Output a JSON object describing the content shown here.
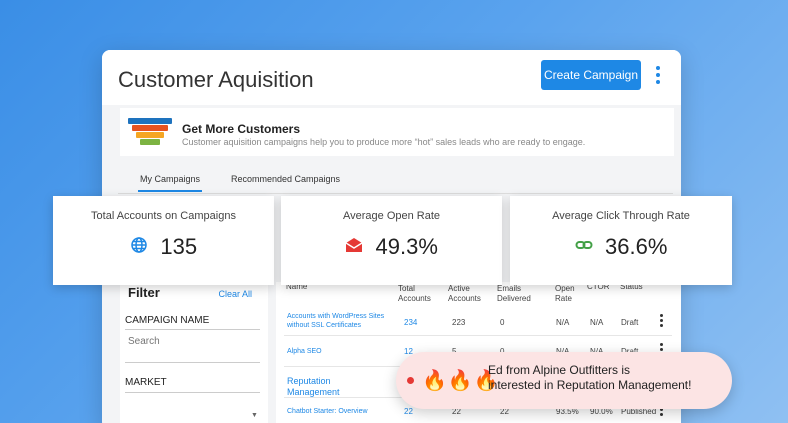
{
  "header": {
    "title": "Customer Aquisition",
    "create_button": "Create Campaign",
    "more_icon": "more-vertical-icon"
  },
  "banner": {
    "icon": "funnel-icon",
    "title": "Get More Customers",
    "description": "Customer aquisition campaigns help you to produce more “hot” sales leads who are ready to engage.",
    "funnel_colors": [
      "#1e73be",
      "#e8531f",
      "#f5a623",
      "#7cb342"
    ]
  },
  "tabs": [
    {
      "label": "My Campaigns",
      "active": true
    },
    {
      "label": "Recommended Campaigns",
      "active": false
    }
  ],
  "stats": [
    {
      "label": "Total Accounts on Campaigns",
      "value": "135",
      "icon": "globe-icon",
      "color": "#1e88e5"
    },
    {
      "label": "Average Open Rate",
      "value": "49.3%",
      "icon": "email-open-icon",
      "color": "#e53935"
    },
    {
      "label": "Average Click Through Rate",
      "value": "36.6%",
      "icon": "link-icon",
      "color": "#43a047"
    }
  ],
  "filter": {
    "title": "Filter",
    "clear_label": "Clear All",
    "campaign_name_label": "CAMPAIGN NAME",
    "search_placeholder": "Search",
    "market_label": "MARKET"
  },
  "table": {
    "columns": [
      "Name",
      "Total Accounts",
      "Active Accounts",
      "Emails Delivered",
      "Open Rate",
      "CTOR",
      "Status"
    ],
    "rows": [
      {
        "name": "Accounts with WordPress Sites without SSL Certificates",
        "total": "234",
        "active": "223",
        "delivered": "0",
        "open_rate": "N/A",
        "ctor": "N/A",
        "status": "Draft"
      },
      {
        "name": "Alpha SEO",
        "total": "12",
        "active": "5",
        "delivered": "0",
        "open_rate": "N/A",
        "ctor": "N/A",
        "status": "Draft"
      },
      {
        "name": "Reputation Management",
        "total": "",
        "active": "",
        "delivered": "",
        "open_rate": "",
        "ctor": "",
        "status": ""
      },
      {
        "name": "Chatbot Starter: Overview",
        "total": "22",
        "active": "22",
        "delivered": "22",
        "open_rate": "93.5%",
        "ctor": "90.0%",
        "status": "Published"
      }
    ]
  },
  "toast": {
    "icons": "🔥🔥🔥",
    "line1": "Ed from Alpine Outfitters is",
    "line2": "interested in Reputation Management!"
  }
}
